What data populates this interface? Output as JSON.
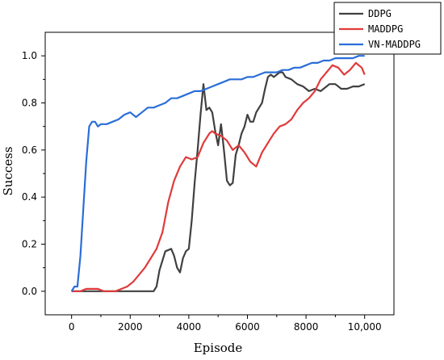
{
  "chart_data": {
    "type": "line",
    "title": "",
    "xlabel": "Episode",
    "ylabel": "Success",
    "xlim": [
      -900,
      11000
    ],
    "ylim": [
      -0.1,
      1.1
    ],
    "x_ticks": [
      0,
      2000,
      4000,
      6000,
      8000,
      10000
    ],
    "x_tick_labels": [
      "0",
      "2000",
      "4000",
      "6000",
      "8000",
      "10,000"
    ],
    "y_ticks": [
      0.0,
      0.2,
      0.4,
      0.6,
      0.8,
      1.0
    ],
    "y_tick_labels": [
      "0.0",
      "0.2",
      "0.4",
      "0.6",
      "0.8",
      "1.0"
    ],
    "grid": false,
    "legend_position": "top-right",
    "series": [
      {
        "name": "DDPG",
        "color": "#404040",
        "x": [
          0,
          1000,
          2000,
          2800,
          2900,
          3000,
          3200,
          3400,
          3500,
          3600,
          3700,
          3800,
          3900,
          4000,
          4100,
          4200,
          4300,
          4400,
          4500,
          4600,
          4700,
          4800,
          4900,
          5000,
          5100,
          5200,
          5300,
          5400,
          5500,
          5600,
          5700,
          5800,
          5900,
          6000,
          6100,
          6200,
          6300,
          6400,
          6500,
          6600,
          6700,
          6800,
          6900,
          7000,
          7100,
          7200,
          7300,
          7500,
          7700,
          7900,
          8100,
          8300,
          8500,
          8700,
          8800,
          9000,
          9200,
          9400,
          9600,
          9800,
          10000
        ],
        "values": [
          0.0,
          0.0,
          0.0,
          0.0,
          0.02,
          0.09,
          0.17,
          0.18,
          0.15,
          0.1,
          0.08,
          0.14,
          0.17,
          0.18,
          0.3,
          0.46,
          0.6,
          0.75,
          0.88,
          0.77,
          0.78,
          0.76,
          0.68,
          0.62,
          0.71,
          0.6,
          0.47,
          0.45,
          0.46,
          0.58,
          0.62,
          0.67,
          0.7,
          0.75,
          0.72,
          0.72,
          0.76,
          0.78,
          0.8,
          0.86,
          0.91,
          0.92,
          0.91,
          0.92,
          0.93,
          0.93,
          0.91,
          0.9,
          0.88,
          0.87,
          0.85,
          0.86,
          0.85,
          0.87,
          0.88,
          0.88,
          0.86,
          0.86,
          0.87,
          0.87,
          0.88
        ]
      },
      {
        "name": "MADDPG",
        "color": "#e03a3a",
        "x": [
          0,
          300,
          500,
          700,
          900,
          1100,
          1300,
          1500,
          1700,
          1900,
          2100,
          2300,
          2500,
          2700,
          2900,
          3100,
          3300,
          3500,
          3700,
          3900,
          4100,
          4300,
          4500,
          4700,
          4800,
          4900,
          5100,
          5300,
          5500,
          5700,
          5900,
          6100,
          6300,
          6500,
          6700,
          6900,
          7100,
          7300,
          7500,
          7700,
          7900,
          8100,
          8300,
          8500,
          8700,
          8900,
          9100,
          9300,
          9500,
          9700,
          9900,
          10000
        ],
        "values": [
          0.0,
          0.0,
          0.01,
          0.01,
          0.01,
          0.0,
          0.0,
          0.0,
          0.01,
          0.02,
          0.04,
          0.07,
          0.1,
          0.14,
          0.18,
          0.25,
          0.38,
          0.47,
          0.53,
          0.57,
          0.56,
          0.57,
          0.63,
          0.67,
          0.68,
          0.67,
          0.66,
          0.64,
          0.6,
          0.62,
          0.59,
          0.55,
          0.53,
          0.59,
          0.63,
          0.67,
          0.7,
          0.71,
          0.73,
          0.77,
          0.8,
          0.82,
          0.85,
          0.9,
          0.93,
          0.96,
          0.95,
          0.92,
          0.94,
          0.97,
          0.95,
          0.92
        ]
      },
      {
        "name": "VN-MADDPG",
        "color": "#2a6ed8",
        "x": [
          0,
          100,
          200,
          300,
          400,
          500,
          600,
          700,
          800,
          900,
          1000,
          1100,
          1200,
          1400,
          1600,
          1800,
          2000,
          2200,
          2400,
          2600,
          2800,
          3000,
          3200,
          3400,
          3600,
          3800,
          4000,
          4200,
          4400,
          4600,
          4800,
          5000,
          5200,
          5400,
          5600,
          5800,
          6000,
          6200,
          6400,
          6600,
          6800,
          7000,
          7200,
          7400,
          7600,
          7800,
          8000,
          8200,
          8400,
          8600,
          8800,
          9000,
          9200,
          9400,
          9600,
          9800,
          10000
        ],
        "values": [
          0.0,
          0.02,
          0.02,
          0.15,
          0.35,
          0.55,
          0.7,
          0.72,
          0.72,
          0.7,
          0.71,
          0.71,
          0.71,
          0.72,
          0.73,
          0.75,
          0.76,
          0.74,
          0.76,
          0.78,
          0.78,
          0.79,
          0.8,
          0.82,
          0.82,
          0.83,
          0.84,
          0.85,
          0.85,
          0.86,
          0.87,
          0.88,
          0.89,
          0.9,
          0.9,
          0.9,
          0.91,
          0.91,
          0.92,
          0.93,
          0.93,
          0.93,
          0.94,
          0.94,
          0.95,
          0.95,
          0.96,
          0.97,
          0.97,
          0.98,
          0.98,
          0.99,
          0.99,
          0.99,
          0.99,
          1.0,
          1.0
        ]
      }
    ]
  }
}
